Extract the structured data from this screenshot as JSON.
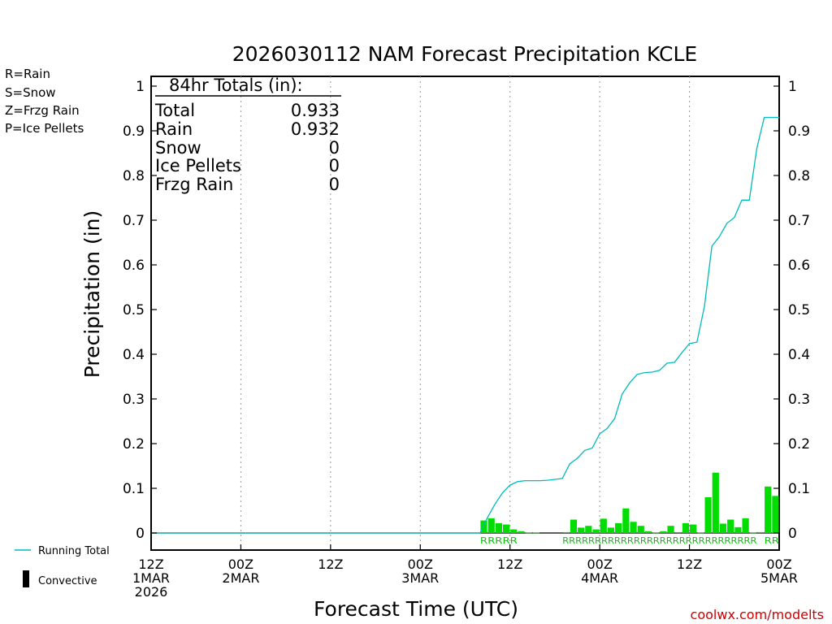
{
  "chart_data": {
    "type": "bar+line",
    "title": "2026030112 NAM Forecast Precipitation KCLE",
    "xlabel": "Forecast Time (UTC)",
    "ylabel": "Precipitation (in)",
    "ylim": [
      0,
      1
    ],
    "yticks": [
      "0",
      "0.1",
      "0.2",
      "0.3",
      "0.4",
      "0.5",
      "0.6",
      "0.7",
      "0.8",
      "0.9",
      "1"
    ],
    "xlim_hours": [
      0,
      84
    ],
    "xticks": [
      {
        "hour": 0,
        "line1": "12Z",
        "line2": "1MAR",
        "line3": "2026"
      },
      {
        "hour": 12,
        "line1": "00Z",
        "line2": "2MAR",
        "line3": ""
      },
      {
        "hour": 24,
        "line1": "12Z",
        "line2": "",
        "line3": ""
      },
      {
        "hour": 36,
        "line1": "00Z",
        "line2": "3MAR",
        "line3": ""
      },
      {
        "hour": 48,
        "line1": "12Z",
        "line2": "",
        "line3": ""
      },
      {
        "hour": 60,
        "line1": "00Z",
        "line2": "4MAR",
        "line3": ""
      },
      {
        "hour": 72,
        "line1": "12Z",
        "line2": "",
        "line3": ""
      },
      {
        "hour": 84,
        "line1": "00Z",
        "line2": "5MAR",
        "line3": ""
      }
    ],
    "grid": "vertical dotted at tick hours",
    "bars_hourly_precip": {
      "series_name": "Rain",
      "color": "#00dd00",
      "hours": [
        44,
        45,
        46,
        47,
        48,
        49,
        50,
        51,
        55,
        56,
        57,
        58,
        59,
        60,
        61,
        62,
        63,
        64,
        65,
        66,
        67,
        68,
        69,
        70,
        71,
        72,
        73,
        74,
        75,
        76,
        77,
        78,
        79,
        80,
        81,
        82,
        83
      ],
      "values": [
        0.028,
        0.033,
        0.022,
        0.019,
        0.008,
        0.004,
        0.001,
        0.001,
        0.002,
        0.03,
        0.012,
        0.016,
        0.008,
        0.032,
        0.012,
        0.022,
        0.055,
        0.025,
        0.016,
        0.004,
        0.001,
        0.004,
        0.016,
        0.002,
        0.022,
        0.019,
        0.001,
        0.08,
        0.135,
        0.021,
        0.03,
        0.013,
        0.033,
        0.001,
        0.002,
        0.104,
        0.083
      ]
    },
    "running_total": {
      "series_name": "Running Total",
      "color": "#00bbbb",
      "hours": [
        0,
        44,
        45,
        46,
        47,
        48,
        49,
        50,
        51,
        52,
        53,
        54,
        55,
        56,
        57,
        58,
        59,
        60,
        61,
        62,
        63,
        64,
        65,
        66,
        67,
        68,
        69,
        70,
        71,
        72,
        73,
        74,
        75,
        76,
        77,
        78,
        79,
        80,
        81,
        82,
        83,
        84
      ],
      "values": [
        0,
        0,
        0.035,
        0.065,
        0.09,
        0.107,
        0.115,
        0.117,
        0.117,
        0.117,
        0.118,
        0.12,
        0.122,
        0.155,
        0.167,
        0.185,
        0.19,
        0.222,
        0.234,
        0.256,
        0.311,
        0.336,
        0.355,
        0.359,
        0.36,
        0.364,
        0.38,
        0.382,
        0.404,
        0.424,
        0.427,
        0.507,
        0.642,
        0.663,
        0.693,
        0.706,
        0.745,
        0.745,
        0.86,
        0.93,
        0.93,
        0.93
      ]
    },
    "ptype_labels": [
      {
        "text": "RRRRR",
        "from_hour": 44,
        "to_hour": 49
      },
      {
        "text": "RRRRRRRRRRRRRRRRRRRRRRRRRRRRRR",
        "from_hour": 55,
        "to_hour": 81
      },
      {
        "text": "RR",
        "from_hour": 82,
        "to_hour": 84
      }
    ]
  },
  "totals_box": {
    "heading": "84hr Totals (in):",
    "rows": [
      {
        "label": "Total",
        "value": "0.933"
      },
      {
        "label": "Rain",
        "value": "0.932"
      },
      {
        "label": "Snow",
        "value": "0"
      },
      {
        "label": "Ice Pellets",
        "value": "0"
      },
      {
        "label": "Frzg Rain",
        "value": "0"
      }
    ]
  },
  "type_legend": [
    {
      "text": "R=Rain",
      "color": "#00dd00"
    },
    {
      "text": "S=Snow",
      "color": "#3333ee"
    },
    {
      "text": "Z=Frzg Rain",
      "color": "#ff8833"
    },
    {
      "text": "P=Ice Pellets",
      "color": "#ee2299"
    }
  ],
  "bottom_legend": {
    "running_total_label": "Running Total",
    "convective_label": "Convective"
  },
  "credit": "coolwx.com/modelts"
}
